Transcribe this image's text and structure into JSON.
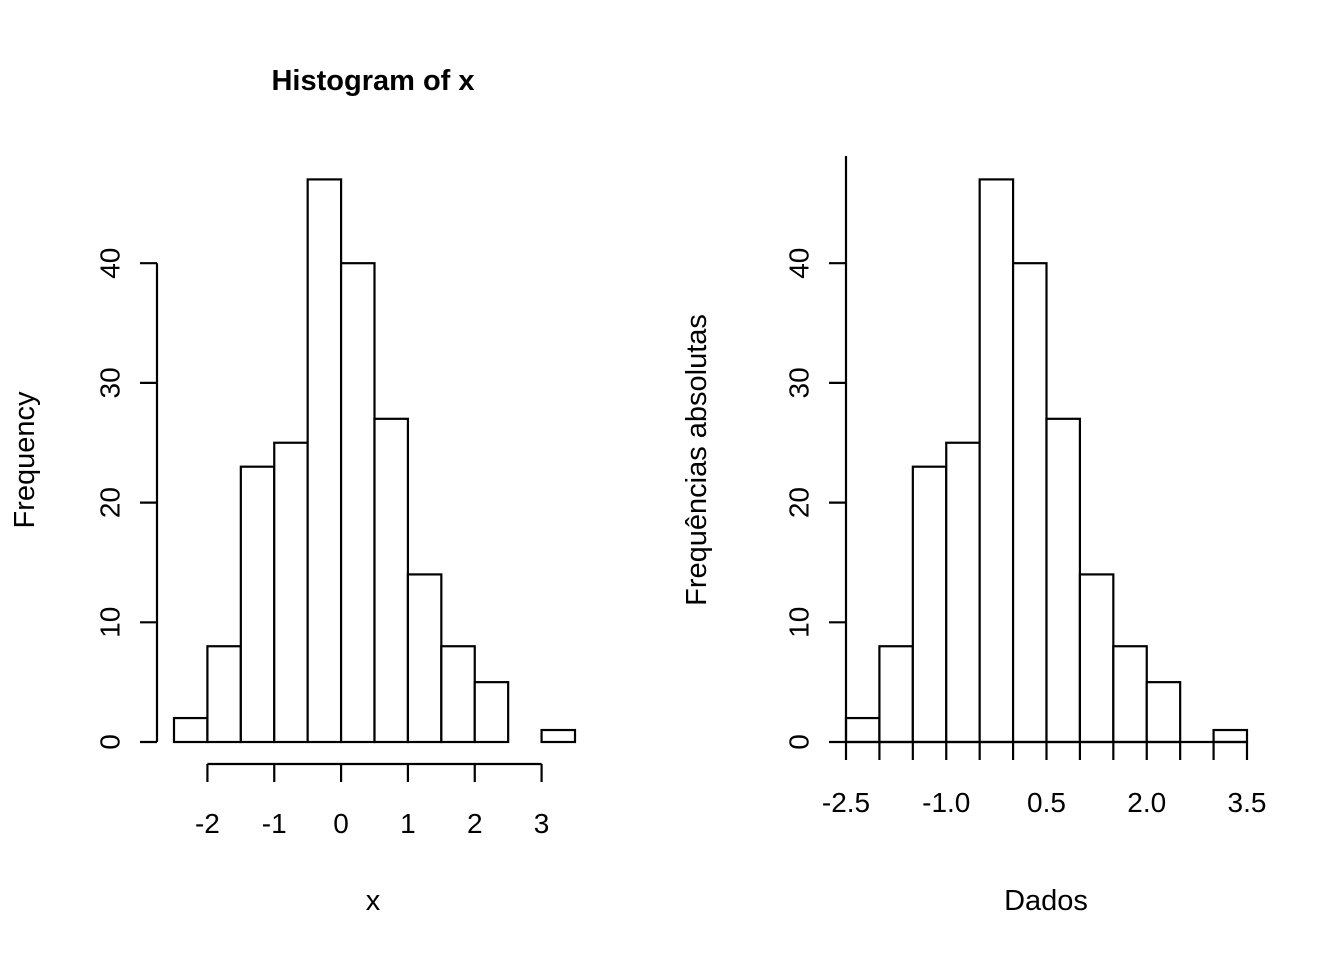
{
  "chart_data": [
    {
      "type": "bar",
      "title": "Histogram of x",
      "xlabel": "x",
      "ylabel": "Frequency",
      "bins": [
        {
          "from": -2.5,
          "to": -2.0,
          "count": 2
        },
        {
          "from": -2.0,
          "to": -1.5,
          "count": 8
        },
        {
          "from": -1.5,
          "to": -1.0,
          "count": 23
        },
        {
          "from": -1.0,
          "to": -0.5,
          "count": 25
        },
        {
          "from": -0.5,
          "to": 0.0,
          "count": 47
        },
        {
          "from": 0.0,
          "to": 0.5,
          "count": 40
        },
        {
          "from": 0.5,
          "to": 1.0,
          "count": 27
        },
        {
          "from": 1.0,
          "to": 1.5,
          "count": 14
        },
        {
          "from": 1.5,
          "to": 2.0,
          "count": 8
        },
        {
          "from": 2.0,
          "to": 2.5,
          "count": 5
        },
        {
          "from": 2.5,
          "to": 3.0,
          "count": 0
        },
        {
          "from": 3.0,
          "to": 3.5,
          "count": 1
        }
      ],
      "xlim": [
        -2.5,
        3.5
      ],
      "ylim": [
        0,
        47
      ],
      "x_ticks": [
        -2,
        -1,
        0,
        1,
        2,
        3
      ],
      "x_tick_labels": [
        "-2",
        "-1",
        "0",
        "1",
        "2",
        "3"
      ],
      "y_ticks": [
        0,
        10,
        20,
        30,
        40
      ],
      "y_tick_labels": [
        "0",
        "10",
        "20",
        "30",
        "40"
      ],
      "x_axis_style": "detached",
      "grid": false
    },
    {
      "type": "bar",
      "title": "",
      "xlabel": "Dados",
      "ylabel": "Frequências absolutas",
      "bins": [
        {
          "from": -2.5,
          "to": -2.0,
          "count": 2
        },
        {
          "from": -2.0,
          "to": -1.5,
          "count": 8
        },
        {
          "from": -1.5,
          "to": -1.0,
          "count": 23
        },
        {
          "from": -1.0,
          "to": -0.5,
          "count": 25
        },
        {
          "from": -0.5,
          "to": 0.0,
          "count": 47
        },
        {
          "from": 0.0,
          "to": 0.5,
          "count": 40
        },
        {
          "from": 0.5,
          "to": 1.0,
          "count": 27
        },
        {
          "from": 1.0,
          "to": 1.5,
          "count": 14
        },
        {
          "from": 1.5,
          "to": 2.0,
          "count": 8
        },
        {
          "from": 2.0,
          "to": 2.5,
          "count": 5
        },
        {
          "from": 2.5,
          "to": 3.0,
          "count": 0
        },
        {
          "from": 3.0,
          "to": 3.5,
          "count": 1
        }
      ],
      "xlim": [
        -2.5,
        3.5
      ],
      "ylim": [
        0,
        50
      ],
      "x_ticks": [
        -2.5,
        -2.0,
        -1.5,
        -1.0,
        -0.5,
        0.0,
        0.5,
        1.0,
        1.5,
        2.0,
        2.5,
        3.0,
        3.5
      ],
      "x_tick_labels": [
        "-2.5",
        "-1.0",
        "0.5",
        "2.0",
        "3.5"
      ],
      "x_tick_label_values": [
        -2.5,
        -1.0,
        0.5,
        2.0,
        3.5
      ],
      "y_ticks": [
        0,
        10,
        20,
        30,
        40
      ],
      "y_tick_labels": [
        "0",
        "10",
        "20",
        "30",
        "40"
      ],
      "x_axis_style": "at-zero",
      "grid": false
    }
  ]
}
